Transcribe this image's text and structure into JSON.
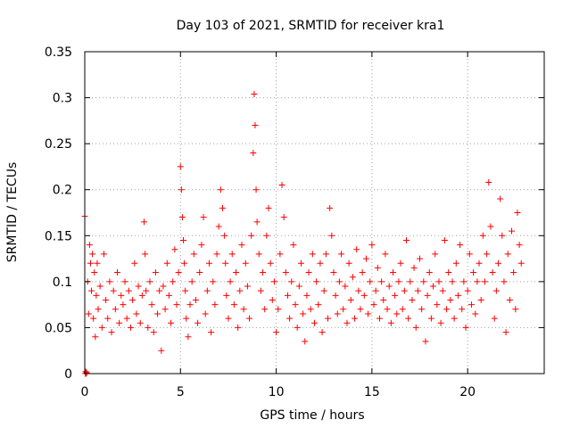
{
  "chart_data": {
    "type": "scatter",
    "title": "Day 103 of 2021, SRMTID for receiver kra1",
    "xlabel": "GPS time / hours",
    "ylabel": "SRMTID / TECUs",
    "xlim": [
      0,
      24
    ],
    "ylim": [
      0,
      0.35
    ],
    "grid": true,
    "marker": "plus",
    "marker_color": "#ff0000",
    "x_ticks": [
      0,
      5,
      10,
      15,
      20
    ],
    "x_tick_labels": [
      "0",
      "5",
      "10",
      "15",
      "20"
    ],
    "y_ticks": [
      0,
      0.05,
      0.1,
      0.15,
      0.2,
      0.25,
      0.3,
      0.35
    ],
    "y_tick_labels": [
      "0",
      "0.05",
      "0.1",
      "0.15",
      "0.2",
      "0.25",
      "0.3",
      "0.35"
    ],
    "series": [
      {
        "name": "SRMTID",
        "x": [
          0.0,
          0.03,
          0.05,
          0.08,
          0.1,
          0.15,
          0.2,
          0.25,
          0.3,
          0.35,
          0.4,
          0.45,
          0.5,
          0.55,
          0.6,
          0.65,
          0.7,
          0.8,
          0.9,
          1.0,
          1.1,
          1.2,
          1.3,
          1.4,
          1.5,
          1.6,
          1.7,
          1.8,
          1.9,
          2.0,
          2.1,
          2.2,
          2.3,
          2.4,
          2.5,
          2.6,
          2.7,
          2.8,
          2.9,
          3.0,
          3.1,
          3.15,
          3.2,
          3.3,
          3.4,
          3.5,
          3.6,
          3.7,
          3.8,
          3.9,
          4.0,
          4.1,
          4.2,
          4.3,
          4.4,
          4.5,
          4.6,
          4.7,
          4.8,
          4.9,
          5.0,
          5.05,
          5.1,
          5.15,
          5.2,
          5.25,
          5.3,
          5.4,
          5.5,
          5.6,
          5.7,
          5.8,
          5.9,
          6.0,
          6.1,
          6.2,
          6.3,
          6.4,
          6.5,
          6.6,
          6.7,
          6.8,
          6.9,
          7.0,
          7.1,
          7.2,
          7.3,
          7.35,
          7.4,
          7.5,
          7.6,
          7.7,
          7.8,
          7.9,
          8.0,
          8.1,
          8.2,
          8.3,
          8.4,
          8.5,
          8.6,
          8.7,
          8.8,
          8.85,
          8.9,
          8.95,
          9.0,
          9.1,
          9.2,
          9.3,
          9.4,
          9.5,
          9.6,
          9.7,
          9.8,
          9.9,
          10.0,
          10.1,
          10.2,
          10.3,
          10.4,
          10.5,
          10.6,
          10.7,
          10.8,
          10.9,
          11.0,
          11.1,
          11.2,
          11.3,
          11.4,
          11.5,
          11.6,
          11.7,
          11.8,
          11.9,
          12.0,
          12.1,
          12.2,
          12.3,
          12.4,
          12.5,
          12.6,
          12.7,
          12.8,
          12.9,
          13.0,
          13.1,
          13.2,
          13.3,
          13.4,
          13.5,
          13.6,
          13.7,
          13.8,
          13.9,
          14.0,
          14.1,
          14.2,
          14.3,
          14.4,
          14.5,
          14.6,
          14.7,
          14.8,
          14.9,
          15.0,
          15.1,
          15.2,
          15.3,
          15.4,
          15.5,
          15.6,
          15.7,
          15.8,
          15.9,
          16.0,
          16.1,
          16.2,
          16.3,
          16.4,
          16.5,
          16.6,
          16.7,
          16.8,
          16.9,
          17.0,
          17.1,
          17.2,
          17.3,
          17.4,
          17.5,
          17.6,
          17.7,
          17.8,
          17.9,
          18.0,
          18.1,
          18.2,
          18.3,
          18.4,
          18.5,
          18.6,
          18.7,
          18.8,
          18.9,
          19.0,
          19.1,
          19.2,
          19.3,
          19.4,
          19.5,
          19.6,
          19.7,
          19.8,
          19.9,
          20.0,
          20.1,
          20.2,
          20.3,
          20.4,
          20.5,
          20.6,
          20.7,
          20.8,
          20.9,
          21.0,
          21.1,
          21.2,
          21.3,
          21.4,
          21.5,
          21.6,
          21.7,
          21.8,
          21.9,
          22.0,
          22.1,
          22.2,
          22.3,
          22.4,
          22.5,
          22.6,
          22.7,
          22.8
        ],
        "y": [
          0.171,
          0.0,
          0.002,
          0.0,
          0.001,
          0.1,
          0.065,
          0.14,
          0.12,
          0.09,
          0.13,
          0.06,
          0.11,
          0.04,
          0.085,
          0.12,
          0.07,
          0.095,
          0.05,
          0.13,
          0.08,
          0.06,
          0.1,
          0.045,
          0.09,
          0.07,
          0.11,
          0.055,
          0.085,
          0.075,
          0.1,
          0.06,
          0.09,
          0.05,
          0.08,
          0.12,
          0.065,
          0.095,
          0.055,
          0.085,
          0.165,
          0.13,
          0.09,
          0.05,
          0.1,
          0.075,
          0.045,
          0.11,
          0.065,
          0.09,
          0.025,
          0.095,
          0.07,
          0.12,
          0.085,
          0.055,
          0.1,
          0.135,
          0.075,
          0.11,
          0.225,
          0.2,
          0.17,
          0.145,
          0.12,
          0.09,
          0.06,
          0.04,
          0.075,
          0.1,
          0.13,
          0.08,
          0.055,
          0.11,
          0.14,
          0.17,
          0.065,
          0.09,
          0.12,
          0.045,
          0.1,
          0.075,
          0.13,
          0.16,
          0.2,
          0.18,
          0.15,
          0.12,
          0.085,
          0.06,
          0.1,
          0.13,
          0.075,
          0.11,
          0.05,
          0.09,
          0.14,
          0.07,
          0.12,
          0.095,
          0.06,
          0.15,
          0.24,
          0.304,
          0.27,
          0.2,
          0.165,
          0.13,
          0.09,
          0.11,
          0.07,
          0.15,
          0.18,
          0.12,
          0.08,
          0.1,
          0.045,
          0.07,
          0.13,
          0.205,
          0.17,
          0.11,
          0.085,
          0.06,
          0.1,
          0.14,
          0.075,
          0.05,
          0.095,
          0.12,
          0.065,
          0.035,
          0.085,
          0.11,
          0.07,
          0.13,
          0.055,
          0.1,
          0.075,
          0.12,
          0.045,
          0.09,
          0.13,
          0.06,
          0.18,
          0.15,
          0.11,
          0.085,
          0.065,
          0.1,
          0.13,
          0.07,
          0.095,
          0.055,
          0.12,
          0.08,
          0.105,
          0.06,
          0.135,
          0.09,
          0.07,
          0.11,
          0.085,
          0.125,
          0.065,
          0.1,
          0.14,
          0.075,
          0.09,
          0.115,
          0.06,
          0.1,
          0.08,
          0.13,
          0.07,
          0.095,
          0.055,
          0.11,
          0.085,
          0.065,
          0.1,
          0.12,
          0.07,
          0.09,
          0.145,
          0.06,
          0.1,
          0.08,
          0.115,
          0.05,
          0.09,
          0.125,
          0.07,
          0.1,
          0.035,
          0.085,
          0.11,
          0.06,
          0.095,
          0.13,
          0.075,
          0.1,
          0.055,
          0.09,
          0.145,
          0.07,
          0.11,
          0.08,
          0.1,
          0.06,
          0.12,
          0.085,
          0.14,
          0.07,
          0.1,
          0.05,
          0.09,
          0.13,
          0.075,
          0.11,
          0.065,
          0.1,
          0.12,
          0.08,
          0.15,
          0.1,
          0.13,
          0.208,
          0.16,
          0.11,
          0.06,
          0.09,
          0.12,
          0.19,
          0.15,
          0.1,
          0.045,
          0.13,
          0.08,
          0.155,
          0.11,
          0.07,
          0.175,
          0.14,
          0.12
        ]
      }
    ]
  }
}
